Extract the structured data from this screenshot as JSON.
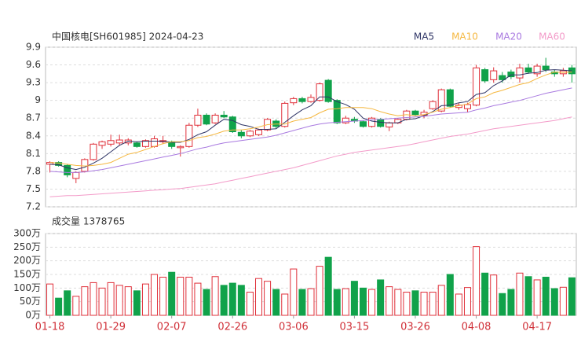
{
  "chart_data": [
    {
      "type": "candlestick",
      "title": "中国核电[SH601985] 2024-04-23",
      "up_color": "#e0303a",
      "down_color": "#10a24a",
      "ohlc": [
        [
          7.92,
          7.97,
          7.78,
          7.95
        ],
        [
          7.95,
          7.97,
          7.88,
          7.9
        ],
        [
          7.9,
          7.92,
          7.7,
          7.74
        ],
        [
          7.68,
          7.8,
          7.6,
          7.78
        ],
        [
          7.8,
          8.02,
          7.78,
          8.0
        ],
        [
          8.0,
          8.28,
          7.98,
          8.26
        ],
        [
          8.24,
          8.32,
          8.18,
          8.3
        ],
        [
          8.26,
          8.42,
          8.22,
          8.32
        ],
        [
          8.28,
          8.42,
          8.24,
          8.33
        ],
        [
          8.28,
          8.36,
          8.24,
          8.33
        ],
        [
          8.28,
          8.3,
          8.2,
          8.22
        ],
        [
          8.22,
          8.34,
          8.2,
          8.32
        ],
        [
          8.22,
          8.4,
          8.2,
          8.35
        ],
        [
          8.3,
          8.4,
          8.26,
          8.32
        ],
        [
          8.3,
          8.32,
          8.18,
          8.22
        ],
        [
          8.2,
          8.24,
          8.05,
          8.22
        ],
        [
          8.22,
          8.62,
          8.2,
          8.58
        ],
        [
          8.58,
          8.86,
          8.55,
          8.75
        ],
        [
          8.75,
          8.78,
          8.58,
          8.6
        ],
        [
          8.62,
          8.78,
          8.6,
          8.75
        ],
        [
          8.75,
          8.82,
          8.7,
          8.72
        ],
        [
          8.72,
          8.74,
          8.45,
          8.47
        ],
        [
          8.46,
          8.5,
          8.36,
          8.4
        ],
        [
          8.4,
          8.5,
          8.38,
          8.48
        ],
        [
          8.42,
          8.52,
          8.4,
          8.5
        ],
        [
          8.5,
          8.7,
          8.48,
          8.68
        ],
        [
          8.65,
          8.68,
          8.52,
          8.56
        ],
        [
          8.56,
          8.98,
          8.54,
          8.95
        ],
        [
          8.96,
          9.06,
          8.92,
          9.03
        ],
        [
          9.03,
          9.06,
          8.95,
          8.98
        ],
        [
          8.98,
          9.1,
          8.96,
          9.05
        ],
        [
          9.0,
          9.3,
          8.98,
          9.28
        ],
        [
          9.34,
          9.36,
          8.96,
          8.98
        ],
        [
          9.0,
          9.02,
          8.6,
          8.62
        ],
        [
          8.62,
          8.74,
          8.6,
          8.7
        ],
        [
          8.68,
          8.72,
          8.62,
          8.65
        ],
        [
          8.64,
          8.66,
          8.54,
          8.56
        ],
        [
          8.56,
          8.72,
          8.54,
          8.7
        ],
        [
          8.68,
          8.7,
          8.54,
          8.56
        ],
        [
          8.55,
          8.64,
          8.48,
          8.62
        ],
        [
          8.62,
          8.7,
          8.6,
          8.68
        ],
        [
          8.68,
          8.84,
          8.66,
          8.82
        ],
        [
          8.82,
          8.84,
          8.74,
          8.76
        ],
        [
          8.75,
          8.84,
          8.7,
          8.8
        ],
        [
          8.86,
          9.0,
          8.84,
          8.98
        ],
        [
          8.82,
          9.2,
          8.8,
          9.18
        ],
        [
          9.18,
          9.2,
          8.88,
          8.9
        ],
        [
          8.88,
          8.96,
          8.84,
          8.92
        ],
        [
          8.86,
          8.96,
          8.8,
          8.93
        ],
        [
          8.92,
          9.6,
          8.9,
          9.55
        ],
        [
          9.52,
          9.55,
          9.3,
          9.33
        ],
        [
          9.35,
          9.56,
          9.3,
          9.5
        ],
        [
          9.42,
          9.48,
          9.3,
          9.35
        ],
        [
          9.48,
          9.52,
          9.36,
          9.4
        ],
        [
          9.38,
          9.62,
          9.3,
          9.55
        ],
        [
          9.55,
          9.62,
          9.45,
          9.48
        ],
        [
          9.45,
          9.62,
          9.4,
          9.58
        ],
        [
          9.58,
          9.72,
          9.48,
          9.52
        ],
        [
          9.48,
          9.52,
          9.4,
          9.45
        ],
        [
          9.45,
          9.55,
          9.4,
          9.5
        ],
        [
          9.55,
          9.6,
          9.3,
          9.45
        ]
      ],
      "series": [
        {
          "name": "MA5",
          "color": "#2f3566",
          "values": [
            7.92,
            7.91,
            7.86,
            7.83,
            7.87,
            7.94,
            8.02,
            8.13,
            8.24,
            8.31,
            8.3,
            8.31,
            8.31,
            8.31,
            8.29,
            8.29,
            8.34,
            8.42,
            8.47,
            8.58,
            8.68,
            8.66,
            8.59,
            8.56,
            8.51,
            8.51,
            8.52,
            8.63,
            8.74,
            8.84,
            8.91,
            9.06,
            9.06,
            8.98,
            8.93,
            8.85,
            8.7,
            8.65,
            8.63,
            8.62,
            8.62,
            8.68,
            8.69,
            8.74,
            8.81,
            8.91,
            8.92,
            8.96,
            8.98,
            9.1,
            9.13,
            9.25,
            9.33,
            9.43,
            9.43,
            9.46,
            9.47,
            9.51,
            9.52,
            9.51,
            9.5
          ]
        },
        {
          "name": "MA10",
          "color": "#f5b841",
          "values": [
            7.95,
            7.94,
            7.92,
            7.9,
            7.89,
            7.9,
            7.92,
            7.95,
            8.02,
            8.09,
            8.12,
            8.17,
            8.22,
            8.27,
            8.3,
            8.3,
            8.32,
            8.37,
            8.39,
            8.43,
            8.48,
            8.5,
            8.5,
            8.52,
            8.55,
            8.59,
            8.6,
            8.6,
            8.65,
            8.68,
            8.71,
            8.79,
            8.85,
            8.86,
            8.88,
            8.88,
            8.88,
            8.86,
            8.81,
            8.77,
            8.74,
            8.76,
            8.74,
            8.76,
            8.8,
            8.85,
            8.88,
            8.91,
            8.94,
            9.03,
            9.06,
            9.13,
            9.17,
            9.22,
            9.27,
            9.3,
            9.37,
            9.43,
            9.48,
            9.47,
            9.48
          ]
        },
        {
          "name": "MA20",
          "color": "#a97ae0",
          "values": [
            7.8,
            7.79,
            7.78,
            7.78,
            7.79,
            7.81,
            7.83,
            7.86,
            7.89,
            7.92,
            7.95,
            7.98,
            8.01,
            8.04,
            8.07,
            8.1,
            8.14,
            8.18,
            8.21,
            8.25,
            8.28,
            8.3,
            8.32,
            8.34,
            8.36,
            8.38,
            8.41,
            8.45,
            8.49,
            8.53,
            8.57,
            8.6,
            8.62,
            8.63,
            8.64,
            8.65,
            8.66,
            8.67,
            8.68,
            8.69,
            8.7,
            8.71,
            8.72,
            8.73,
            8.75,
            8.77,
            8.78,
            8.79,
            8.8,
            8.84,
            8.87,
            8.91,
            8.94,
            8.97,
            9.0,
            9.04,
            9.08,
            9.12,
            9.15,
            9.18,
            9.21
          ]
        },
        {
          "name": "MA60",
          "color": "#f39bc9",
          "values": [
            7.37,
            7.38,
            7.39,
            7.39,
            7.4,
            7.41,
            7.42,
            7.43,
            7.44,
            7.45,
            7.46,
            7.47,
            7.48,
            7.49,
            7.5,
            7.51,
            7.53,
            7.55,
            7.57,
            7.59,
            7.62,
            7.65,
            7.68,
            7.71,
            7.74,
            7.77,
            7.8,
            7.83,
            7.86,
            7.9,
            7.94,
            7.98,
            8.02,
            8.06,
            8.09,
            8.12,
            8.14,
            8.16,
            8.18,
            8.2,
            8.22,
            8.24,
            8.27,
            8.3,
            8.33,
            8.36,
            8.39,
            8.41,
            8.43,
            8.46,
            8.49,
            8.52,
            8.54,
            8.56,
            8.58,
            8.6,
            8.62,
            8.64,
            8.66,
            8.69,
            8.72
          ]
        }
      ],
      "ylim": [
        7.2,
        9.9
      ],
      "yticks": [
        9.9,
        9.6,
        9.3,
        9,
        8.7,
        8.4,
        8.1,
        7.8,
        7.5,
        7.2
      ],
      "grid": true
    },
    {
      "type": "bar",
      "title": "成交量 1378765",
      "categories": [
        "01-18",
        null,
        null,
        null,
        null,
        null,
        null,
        "01-29",
        null,
        null,
        null,
        null,
        null,
        null,
        "02-07",
        null,
        null,
        null,
        null,
        null,
        null,
        "02-26",
        null,
        null,
        null,
        null,
        null,
        null,
        "03-06",
        null,
        null,
        null,
        null,
        null,
        null,
        "03-15",
        null,
        null,
        null,
        null,
        null,
        null,
        "03-26",
        null,
        null,
        null,
        null,
        null,
        null,
        "04-08",
        null,
        null,
        null,
        null,
        null,
        null,
        "04-17",
        null,
        null,
        null,
        null
      ],
      "values": [
        115,
        63,
        90,
        70,
        105,
        120,
        100,
        120,
        110,
        105,
        90,
        115,
        150,
        140,
        158,
        140,
        140,
        118,
        95,
        142,
        110,
        118,
        110,
        85,
        135,
        125,
        95,
        78,
        170,
        95,
        98,
        180,
        213,
        95,
        98,
        125,
        100,
        95,
        130,
        105,
        95,
        85,
        90,
        85,
        85,
        110,
        150,
        78,
        102,
        252,
        155,
        148,
        80,
        95,
        155,
        142,
        130,
        140,
        98,
        103,
        137.8765
      ],
      "ylim": [
        0,
        300
      ],
      "yticks": [
        {
          "value": 300,
          "label": "300万"
        },
        {
          "value": 250,
          "label": "250万"
        },
        {
          "value": 200,
          "label": "200万"
        },
        {
          "value": 150,
          "label": "150万"
        },
        {
          "value": 100,
          "label": "100万"
        },
        {
          "value": 50,
          "label": "50万"
        },
        {
          "value": 0,
          "label": "0万"
        }
      ],
      "grid": true
    }
  ]
}
